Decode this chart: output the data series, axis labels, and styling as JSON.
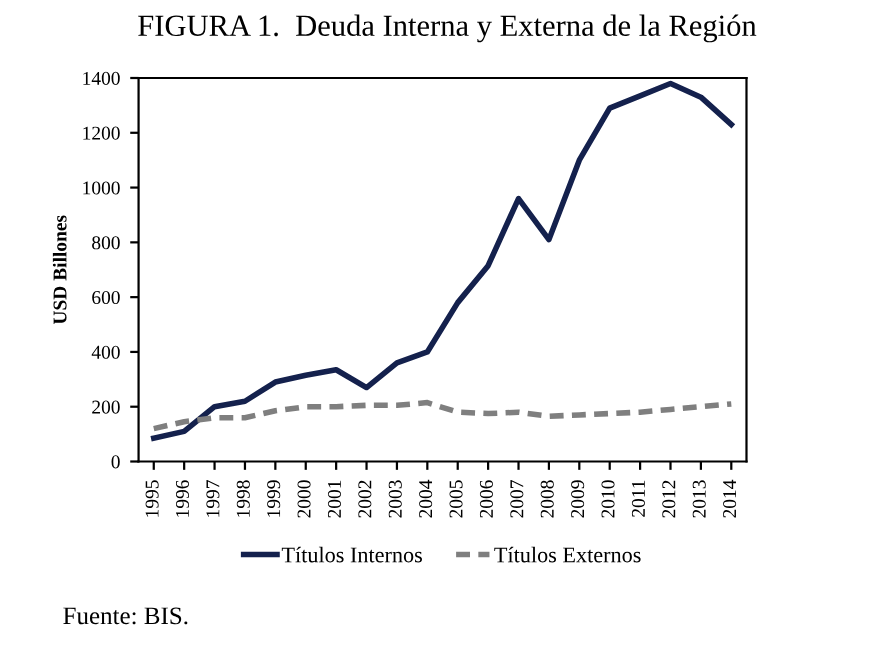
{
  "chart_data": {
    "type": "line",
    "title": "FIGURA 1.  Deuda Interna y Externa de la Región",
    "ylabel": "USD Billones",
    "categories": [
      "1995",
      "1996",
      "1997",
      "1998",
      "1999",
      "2000",
      "2001",
      "2002",
      "2003",
      "2004",
      "2005",
      "2006",
      "2007",
      "2008",
      "2009",
      "2010",
      "2011",
      "2012",
      "2013",
      "2014"
    ],
    "series": [
      {
        "name": "Títulos Internos",
        "color": "#14214d",
        "line_style": "solid",
        "values": [
          85,
          110,
          200,
          220,
          290,
          315,
          335,
          270,
          360,
          400,
          580,
          715,
          960,
          810,
          1100,
          1290,
          1335,
          1380,
          1330,
          1230
        ]
      },
      {
        "name": "Títulos Externos",
        "color": "#7f7f7f",
        "line_style": "dashed",
        "values": [
          120,
          145,
          160,
          160,
          185,
          200,
          200,
          205,
          205,
          215,
          180,
          175,
          180,
          165,
          170,
          175,
          180,
          190,
          200,
          210
        ]
      }
    ],
    "ylim": [
      0,
      1400
    ],
    "yticks": [
      0,
      200,
      400,
      600,
      800,
      1000,
      1200,
      1400
    ],
    "grid": false,
    "legend": "bottom",
    "marker": "none",
    "annotations": [
      "Fuente: BIS."
    ]
  }
}
